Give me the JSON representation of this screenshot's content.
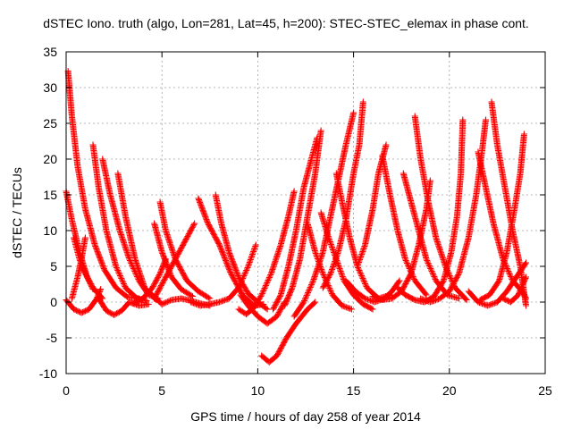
{
  "chart_data": {
    "type": "scatter",
    "title": "dSTEC Iono. truth (algo, Lon=281, Lat=45, h=200): STEC-STEC_elemax in phase cont.",
    "xlabel": "GPS time / hours of day 258 of year 2014",
    "ylabel": "dSTEC  / TECUs",
    "xlim": [
      0,
      25
    ],
    "ylim": [
      -10,
      35
    ],
    "xticks": [
      0,
      5,
      10,
      15,
      20,
      25
    ],
    "yticks": [
      -10,
      -5,
      0,
      5,
      10,
      15,
      20,
      25,
      30,
      35
    ],
    "grid": true,
    "marker": "+",
    "color": "#ff0000",
    "series": [
      {
        "points": [
          [
            0.1,
            32.3
          ],
          [
            0.3,
            26
          ],
          [
            0.6,
            19
          ],
          [
            1.0,
            13
          ],
          [
            1.5,
            8
          ],
          [
            2.0,
            4.5
          ],
          [
            2.6,
            2
          ],
          [
            3.2,
            0.7
          ],
          [
            3.8,
            0.5
          ]
        ]
      },
      {
        "points": [
          [
            0.0,
            15.5
          ],
          [
            0.3,
            11.5
          ],
          [
            0.7,
            7
          ],
          [
            1.1,
            3.5
          ],
          [
            1.4,
            1.8
          ]
        ]
      },
      {
        "points": [
          [
            0.0,
            0.3
          ],
          [
            0.4,
            -1
          ],
          [
            0.8,
            -1.5
          ],
          [
            1.2,
            -1
          ],
          [
            1.6,
            0.5
          ],
          [
            1.8,
            1.8
          ]
        ]
      },
      {
        "points": [
          [
            0.3,
            0.5
          ],
          [
            0.6,
            3.5
          ],
          [
            0.8,
            6
          ],
          [
            1.0,
            9
          ]
        ]
      },
      {
        "points": [
          [
            0.4,
            9
          ],
          [
            0.7,
            6
          ],
          [
            1.0,
            4
          ],
          [
            1.4,
            2
          ],
          [
            1.9,
            0.5
          ]
        ]
      },
      {
        "points": [
          [
            1.4,
            22
          ],
          [
            1.7,
            16
          ],
          [
            2.1,
            10
          ],
          [
            2.6,
            5
          ],
          [
            3.1,
            2
          ],
          [
            3.7,
            0.5
          ],
          [
            4.2,
            0.2
          ]
        ]
      },
      {
        "points": [
          [
            1.9,
            20
          ],
          [
            2.3,
            15
          ],
          [
            2.8,
            10
          ],
          [
            3.3,
            6
          ],
          [
            3.8,
            3
          ],
          [
            4.3,
            1
          ],
          [
            4.8,
            0.5
          ]
        ]
      },
      {
        "points": [
          [
            1.7,
            0.5
          ],
          [
            2.1,
            -1.2
          ],
          [
            2.5,
            -1.8
          ],
          [
            2.9,
            -1.2
          ],
          [
            3.3,
            0
          ],
          [
            3.8,
            -0.5
          ],
          [
            4.3,
            -0.3
          ]
        ]
      },
      {
        "points": [
          [
            2.7,
            18
          ],
          [
            3.1,
            12
          ],
          [
            3.6,
            6
          ],
          [
            4.1,
            2
          ],
          [
            4.7,
            0.3
          ]
        ]
      },
      {
        "points": [
          [
            3.5,
            -0.2
          ],
          [
            4.0,
            0.5
          ],
          [
            4.5,
            2
          ],
          [
            4.9,
            4
          ],
          [
            5.2,
            6
          ]
        ]
      },
      {
        "points": [
          [
            4.9,
            14
          ],
          [
            5.2,
            10
          ],
          [
            5.7,
            6
          ],
          [
            6.3,
            3
          ],
          [
            6.9,
            1.5
          ],
          [
            7.5,
            0.5
          ]
        ]
      },
      {
        "points": [
          [
            4.6,
            11
          ],
          [
            5.0,
            7
          ],
          [
            5.5,
            3.5
          ],
          [
            6.0,
            1.8
          ],
          [
            6.6,
            0.8
          ]
        ]
      },
      {
        "points": [
          [
            4.5,
            1
          ],
          [
            5.0,
            -0.3
          ],
          [
            5.5,
            0.3
          ],
          [
            6.0,
            0.5
          ],
          [
            6.5,
            0.2
          ],
          [
            7.0,
            -0.2
          ],
          [
            7.5,
            -0.5
          ]
        ]
      },
      {
        "points": [
          [
            4.6,
            0.5
          ],
          [
            5.0,
            2.5
          ],
          [
            5.4,
            4.5
          ],
          [
            5.8,
            6.5
          ],
          [
            6.3,
            9
          ],
          [
            6.7,
            11
          ]
        ]
      },
      {
        "points": [
          [
            6.9,
            14.5
          ],
          [
            7.4,
            11
          ],
          [
            8.0,
            8
          ],
          [
            8.6,
            4
          ],
          [
            9.2,
            1
          ],
          [
            9.8,
            -0.5
          ],
          [
            10.3,
            -0.3
          ]
        ]
      },
      {
        "points": [
          [
            7.8,
            15
          ],
          [
            8.1,
            11
          ],
          [
            8.5,
            7
          ],
          [
            9.0,
            3.5
          ],
          [
            9.5,
            1.2
          ],
          [
            10.0,
            0
          ],
          [
            10.5,
            -1
          ]
        ]
      },
      {
        "points": [
          [
            6.5,
            0
          ],
          [
            7.0,
            -0.5
          ],
          [
            7.5,
            -0.3
          ],
          [
            8.0,
            0
          ],
          [
            8.5,
            0.5
          ],
          [
            9.0,
            2
          ],
          [
            9.5,
            5
          ],
          [
            9.9,
            8
          ]
        ]
      },
      {
        "points": [
          [
            9.1,
            1
          ],
          [
            9.5,
            -0.5
          ],
          [
            10.0,
            -2
          ],
          [
            10.5,
            -3
          ],
          [
            11.0,
            -2
          ],
          [
            11.4,
            0
          ]
        ]
      },
      {
        "points": [
          [
            9.0,
            -1
          ],
          [
            9.4,
            -1.7
          ],
          [
            9.8,
            -0.8
          ],
          [
            10.2,
            1
          ],
          [
            10.7,
            4
          ],
          [
            11.2,
            8
          ],
          [
            11.6,
            12
          ],
          [
            11.9,
            15.5
          ]
        ]
      },
      {
        "points": [
          [
            10.2,
            -7.5
          ],
          [
            10.6,
            -8.4
          ],
          [
            11.0,
            -7.5
          ],
          [
            11.5,
            -5
          ],
          [
            12.0,
            -3
          ],
          [
            12.6,
            -1
          ],
          [
            13.0,
            0
          ]
        ]
      },
      {
        "points": [
          [
            10.8,
            -1
          ],
          [
            11.2,
            1
          ],
          [
            11.6,
            5
          ],
          [
            12.0,
            10
          ],
          [
            12.4,
            16
          ],
          [
            12.8,
            20
          ],
          [
            13.1,
            23
          ]
        ]
      },
      {
        "points": [
          [
            11.4,
            -0.5
          ],
          [
            11.8,
            2
          ],
          [
            12.2,
            6
          ],
          [
            12.6,
            12
          ],
          [
            13.0,
            18
          ],
          [
            13.3,
            24
          ]
        ]
      },
      {
        "points": [
          [
            11.9,
            -2
          ],
          [
            12.4,
            0
          ],
          [
            12.9,
            3
          ],
          [
            13.4,
            7
          ],
          [
            13.8,
            12
          ],
          [
            14.2,
            17
          ],
          [
            14.6,
            22
          ],
          [
            15.0,
            26.5
          ]
        ]
      },
      {
        "points": [
          [
            12.6,
            11
          ],
          [
            13.0,
            7
          ],
          [
            13.4,
            4
          ],
          [
            13.9,
            1
          ],
          [
            14.4,
            -0.5
          ],
          [
            14.9,
            -1
          ]
        ]
      },
      {
        "points": [
          [
            13.3,
            12.5
          ],
          [
            13.7,
            9
          ],
          [
            14.1,
            6
          ],
          [
            14.5,
            3
          ],
          [
            15.0,
            1
          ],
          [
            15.5,
            -0.3
          ],
          [
            16.0,
            -1
          ]
        ]
      },
      {
        "points": [
          [
            14.1,
            18
          ],
          [
            14.4,
            14
          ],
          [
            14.8,
            9
          ],
          [
            15.2,
            5
          ],
          [
            15.7,
            2
          ],
          [
            16.3,
            0.5
          ],
          [
            16.9,
            1
          ]
        ]
      },
      {
        "points": [
          [
            13.4,
            2
          ],
          [
            13.8,
            4
          ],
          [
            14.2,
            7
          ],
          [
            14.6,
            11.5
          ],
          [
            15.0,
            18
          ],
          [
            15.3,
            22
          ],
          [
            15.5,
            28
          ]
        ]
      },
      {
        "points": [
          [
            14.6,
            3
          ],
          [
            15.1,
            1.5
          ],
          [
            15.6,
            0.5
          ],
          [
            16.1,
            0
          ],
          [
            16.6,
            0.5
          ],
          [
            17.0,
            1.5
          ],
          [
            17.4,
            3
          ]
        ]
      },
      {
        "points": [
          [
            15.2,
            5
          ],
          [
            15.6,
            8
          ],
          [
            16.0,
            13
          ],
          [
            16.3,
            18
          ],
          [
            16.7,
            22
          ]
        ]
      },
      {
        "points": [
          [
            16.5,
            20.5
          ],
          [
            16.9,
            15
          ],
          [
            17.3,
            10
          ],
          [
            17.7,
            6
          ],
          [
            18.2,
            3
          ],
          [
            18.8,
            1
          ]
        ]
      },
      {
        "points": [
          [
            16.0,
            0.8
          ],
          [
            16.5,
            0.3
          ],
          [
            17.0,
            0.5
          ],
          [
            17.5,
            1.5
          ],
          [
            18.0,
            4
          ],
          [
            18.4,
            8
          ],
          [
            18.8,
            13
          ],
          [
            19.0,
            17
          ]
        ]
      },
      {
        "points": [
          [
            17.6,
            18
          ],
          [
            18.0,
            14
          ],
          [
            18.4,
            10
          ],
          [
            18.8,
            6
          ],
          [
            19.3,
            3
          ],
          [
            19.9,
            1
          ],
          [
            20.5,
            0.5
          ]
        ]
      },
      {
        "points": [
          [
            18.2,
            26
          ],
          [
            18.5,
            20
          ],
          [
            18.9,
            14
          ],
          [
            19.3,
            9
          ],
          [
            19.8,
            5
          ],
          [
            20.3,
            2
          ],
          [
            20.9,
            0.3
          ]
        ]
      },
      {
        "points": [
          [
            17.3,
            2
          ],
          [
            17.7,
            1
          ],
          [
            18.2,
            0.3
          ],
          [
            18.7,
            0
          ],
          [
            19.2,
            0.8
          ],
          [
            19.7,
            3
          ],
          [
            20.1,
            7
          ],
          [
            20.4,
            12
          ],
          [
            20.6,
            18
          ],
          [
            20.7,
            25.5
          ]
        ]
      },
      {
        "points": [
          [
            18.5,
            0.5
          ],
          [
            19.0,
            0
          ],
          [
            19.5,
            0.5
          ],
          [
            20.0,
            1.5
          ],
          [
            20.5,
            4
          ],
          [
            21.0,
            9
          ],
          [
            21.4,
            15
          ],
          [
            21.7,
            21
          ],
          [
            21.9,
            25.5
          ]
        ]
      },
      {
        "points": [
          [
            21.5,
            21
          ],
          [
            21.9,
            16
          ],
          [
            22.3,
            11
          ],
          [
            22.8,
            6
          ],
          [
            23.3,
            3
          ],
          [
            23.8,
            1.5
          ],
          [
            24.0,
            0.5
          ]
        ]
      },
      {
        "points": [
          [
            22.2,
            28
          ],
          [
            22.5,
            22
          ],
          [
            22.9,
            16
          ],
          [
            23.3,
            10
          ],
          [
            23.7,
            5
          ],
          [
            24.0,
            -0.5
          ]
        ]
      },
      {
        "points": [
          [
            21.0,
            1.5
          ],
          [
            21.5,
            0
          ],
          [
            22.0,
            -0.5
          ],
          [
            22.5,
            0
          ],
          [
            23.0,
            1.5
          ],
          [
            23.5,
            3.5
          ],
          [
            24.0,
            5.5
          ]
        ]
      },
      {
        "points": [
          [
            21.6,
            0.3
          ],
          [
            22.1,
            1
          ],
          [
            22.6,
            3
          ],
          [
            23.0,
            7
          ],
          [
            23.4,
            13
          ],
          [
            23.7,
            18
          ],
          [
            23.9,
            23.5
          ]
        ]
      },
      {
        "points": [
          [
            22.8,
            0.5
          ],
          [
            23.2,
            0
          ],
          [
            23.6,
            1
          ],
          [
            24.0,
            3.5
          ]
        ]
      }
    ]
  }
}
